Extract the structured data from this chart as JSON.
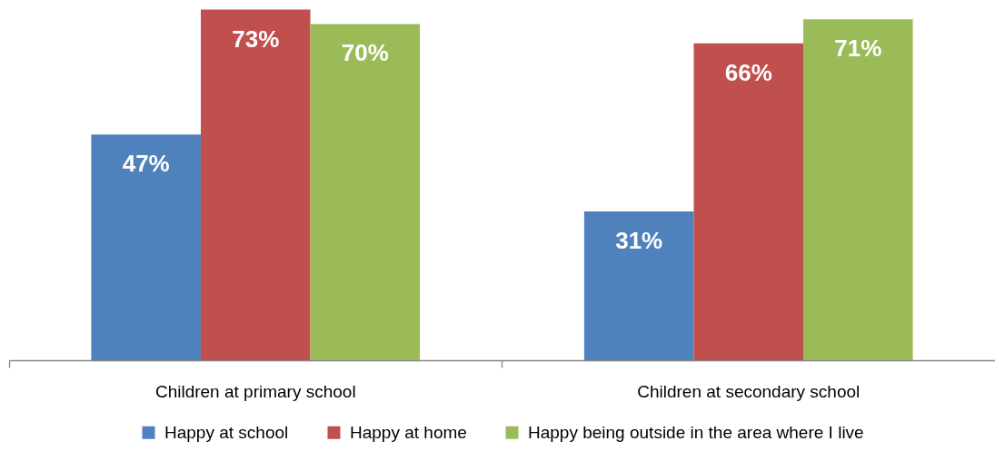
{
  "chart_data": {
    "type": "bar",
    "categories": [
      "Children at primary school",
      "Children at secondary school"
    ],
    "series": [
      {
        "name": "Happy at school",
        "color": "#4f81bd",
        "values": [
          47,
          31
        ],
        "value_labels": [
          "47%",
          "31%"
        ]
      },
      {
        "name": "Happy at home",
        "color": "#c0504d",
        "values": [
          73,
          66
        ],
        "value_labels": [
          "73%",
          "66%"
        ]
      },
      {
        "name": "Happy being outside in the area where I live",
        "color": "#9bbb59",
        "values": [
          70,
          71
        ],
        "value_labels": [
          "70%",
          "71%"
        ]
      }
    ],
    "ylim": [
      0,
      75
    ],
    "tick_labels": "x",
    "legend": "bottom"
  }
}
